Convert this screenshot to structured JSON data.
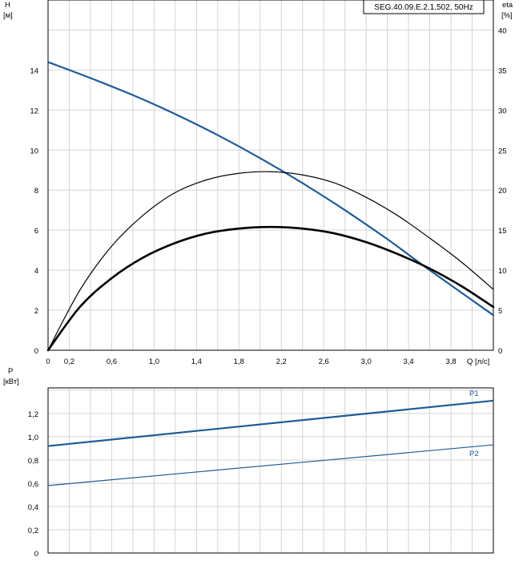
{
  "chart_data": [
    {
      "type": "line",
      "title": "SEG.40.09.E.2.1.502, 50Hz",
      "xlabel": "Q [л/с]",
      "ylabel_left": "H",
      "ylabel_left_unit": "[м]",
      "ylabel_right": "eta",
      "ylabel_right_unit": "[%]",
      "xlim": [
        0,
        4.2
      ],
      "ylim_left": [
        0,
        17.5
      ],
      "ylim_right": [
        0,
        43.75
      ],
      "x_ticks": [
        "0",
        "0,2",
        "0,6",
        "1,0",
        "1,4",
        "1,8",
        "2,2",
        "2,6",
        "3,0",
        "3,4",
        "3,8"
      ],
      "x_tick_values": [
        0,
        0.2,
        0.6,
        1.0,
        1.4,
        1.8,
        2.2,
        2.6,
        3.0,
        3.4,
        3.8
      ],
      "y_left_ticks": [
        "0",
        "2",
        "4",
        "6",
        "8",
        "10",
        "12",
        "14"
      ],
      "y_left_tick_values": [
        0,
        2,
        4,
        6,
        8,
        10,
        12,
        14
      ],
      "y_right_ticks": [
        "0",
        "5",
        "10",
        "15",
        "20",
        "25",
        "30",
        "35",
        "40"
      ],
      "y_right_tick_values": [
        0,
        5,
        10,
        15,
        20,
        25,
        30,
        35,
        40
      ],
      "grid": true,
      "series": [
        {
          "axis": "left",
          "color": "#1f5b96",
          "stroke": 2.2,
          "x": [
            0,
            0.4,
            0.8,
            1.2,
            1.6,
            2.0,
            2.4,
            2.8,
            3.2,
            3.6,
            4.2
          ],
          "y": [
            14.4,
            13.6,
            12.75,
            11.8,
            10.75,
            9.6,
            8.35,
            7.0,
            5.55,
            4.0,
            1.75
          ]
        },
        {
          "axis": "right",
          "color": "#000000",
          "stroke": 1.2,
          "x": [
            0,
            0.3,
            0.6,
            0.9,
            1.2,
            1.5,
            1.8,
            2.1,
            2.4,
            2.7,
            3.0,
            3.3,
            3.6,
            3.9,
            4.2
          ],
          "y": [
            0,
            7.5,
            13.0,
            16.9,
            19.7,
            21.3,
            22.1,
            22.3,
            21.9,
            20.9,
            19.1,
            16.8,
            14.0,
            11.0,
            7.6
          ]
        },
        {
          "axis": "right",
          "color": "#000000",
          "stroke": 2.6,
          "x": [
            0,
            0.3,
            0.6,
            0.9,
            1.2,
            1.5,
            1.8,
            2.1,
            2.4,
            2.7,
            3.0,
            3.3,
            3.6,
            3.9,
            4.2
          ],
          "y": [
            0,
            5.4,
            9.0,
            11.6,
            13.4,
            14.6,
            15.2,
            15.4,
            15.2,
            14.6,
            13.5,
            12.0,
            10.2,
            8.0,
            5.4
          ]
        }
      ]
    },
    {
      "type": "line",
      "ylabel": "P",
      "ylabel_unit": "[кВт]",
      "xlim": [
        0,
        4.2
      ],
      "ylim": [
        0,
        1.42
      ],
      "y_ticks": [
        "0",
        "0,2",
        "0,4",
        "0,6",
        "0,8",
        "1,0",
        "1,2"
      ],
      "y_tick_values": [
        0,
        0.2,
        0.4,
        0.6,
        0.8,
        1.0,
        1.2
      ],
      "grid": true,
      "series": [
        {
          "name": "P1",
          "color": "#1f5b96",
          "stroke": 2.2,
          "x": [
            0,
            4.2
          ],
          "y": [
            0.92,
            1.31
          ]
        },
        {
          "name": "P2",
          "color": "#1f5b96",
          "stroke": 1.2,
          "x": [
            0,
            4.2
          ],
          "y": [
            0.58,
            0.93
          ]
        }
      ]
    }
  ]
}
